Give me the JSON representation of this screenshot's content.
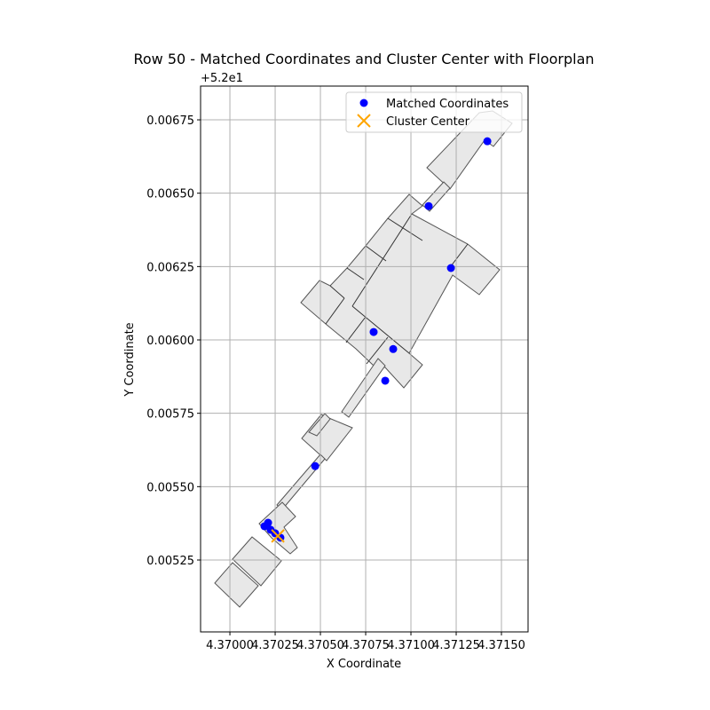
{
  "chart_data": {
    "type": "scatter",
    "title": "Row 50 - Matched Coordinates and Cluster Center with Floorplan",
    "x_label": "X Coordinate",
    "y_label": "Y Coordinate",
    "y_offset_label": "+5.2e1",
    "series": [
      {
        "name": "Matched Coordinates",
        "color": "#0000ff",
        "marker": "o",
        "x": [
          4.371422,
          4.371098,
          4.371221,
          4.370794,
          4.370902,
          4.370858,
          4.370471,
          4.370211,
          4.370191,
          4.370225,
          4.37025,
          4.370279
        ],
        "y": [
          0.006677,
          0.006456,
          0.006245,
          0.006027,
          0.005969,
          0.005861,
          0.00557,
          0.005377,
          0.005365,
          0.005353,
          0.005341,
          0.005326
        ]
      },
      {
        "name": "Cluster Center",
        "color": "#ffa500",
        "marker": "x",
        "x": [
          4.370265
        ],
        "y": [
          0.005332
        ]
      }
    ],
    "xlim": [
      4.369838,
      4.371647
    ],
    "ylim": [
      0.005005,
      0.006865
    ],
    "xticks": [
      {
        "value": 4.37,
        "label": "4.37000"
      },
      {
        "value": 4.37025,
        "label": "4.37025"
      },
      {
        "value": 4.3705,
        "label": "4.37050"
      },
      {
        "value": 4.37075,
        "label": "4.37075"
      },
      {
        "value": 4.371,
        "label": "4.37100"
      },
      {
        "value": 4.37125,
        "label": "4.37125"
      },
      {
        "value": 4.3715,
        "label": "4.37150"
      }
    ],
    "yticks": [
      {
        "value": 0.00525,
        "label": "0.00525"
      },
      {
        "value": 0.0055,
        "label": "0.00550"
      },
      {
        "value": 0.00575,
        "label": "0.00575"
      },
      {
        "value": 0.006,
        "label": "0.00600"
      },
      {
        "value": 0.00625,
        "label": "0.00625"
      },
      {
        "value": 0.0065,
        "label": "0.00650"
      },
      {
        "value": 0.00675,
        "label": "0.00675"
      }
    ],
    "grid": true,
    "legend": "upper right"
  }
}
